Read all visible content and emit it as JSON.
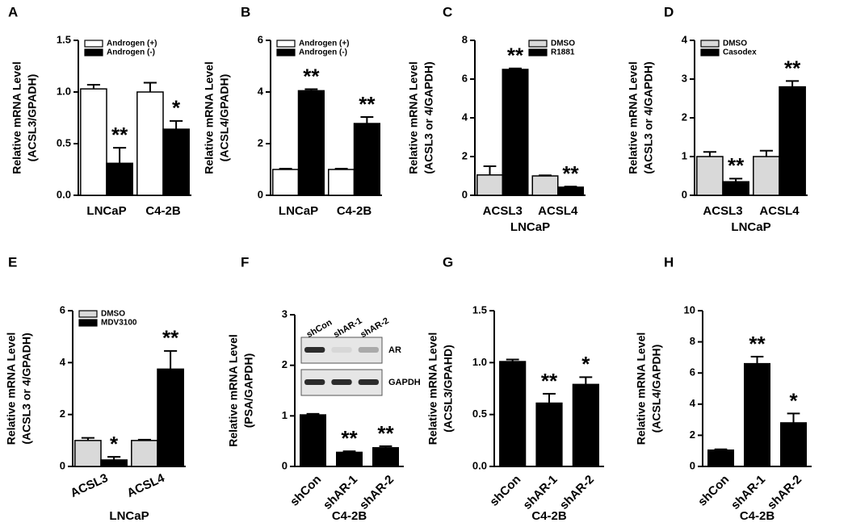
{
  "chart_data": [
    {
      "type": "bar",
      "panel": "A",
      "ylabel": [
        "Relative mRNA Level",
        "(ACSL3/GPADH)"
      ],
      "categories": [
        "LNCaP",
        "C4-2B"
      ],
      "series": [
        {
          "name": "Androgen (+)",
          "color": "#ffffff",
          "values": [
            1.03,
            1.0
          ],
          "errors": [
            0.04,
            0.09
          ],
          "sig": [
            null,
            null
          ]
        },
        {
          "name": "Androgen (-)",
          "color": "#000000",
          "values": [
            0.31,
            0.64
          ],
          "errors": [
            0.15,
            0.08
          ],
          "sig": [
            "**",
            "*"
          ]
        }
      ],
      "ylim": [
        0,
        1.5
      ],
      "yticks": [
        {
          "value": 0,
          "label": "0.0"
        },
        0.5,
        {
          "value": 1,
          "label": "1.0"
        },
        1.5
      ],
      "legend": "upper left"
    },
    {
      "type": "bar",
      "panel": "B",
      "ylabel": [
        "Relative mRNA Level",
        "(ACSL4/GPADH)"
      ],
      "categories": [
        "LNCaP",
        "C4-2B"
      ],
      "series": [
        {
          "name": "Androgen (+)",
          "color": "#ffffff",
          "values": [
            1.0,
            1.0
          ],
          "errors": [
            0.03,
            0.03
          ],
          "sig": [
            null,
            null
          ]
        },
        {
          "name": "Androgen (-)",
          "color": "#000000",
          "values": [
            4.05,
            2.78
          ],
          "errors": [
            0.06,
            0.25
          ],
          "sig": [
            "**",
            "**"
          ]
        }
      ],
      "ylim": [
        0,
        6
      ],
      "yticks": [
        0,
        2,
        4,
        6
      ],
      "legend": "upper left"
    },
    {
      "type": "bar",
      "panel": "C",
      "ylabel": [
        "Relative mRNA Level",
        "(ACSL3 or 4/GAPDH)"
      ],
      "categories": [
        "ACSL3",
        "ACSL4"
      ],
      "xlabel": "LNCaP",
      "series": [
        {
          "name": "DMSO",
          "color": "#d9d9d9",
          "values": [
            1.05,
            1.0
          ],
          "errors": [
            0.45,
            0.03
          ],
          "sig": [
            null,
            null
          ]
        },
        {
          "name": "R1881",
          "color": "#000000",
          "values": [
            6.5,
            0.42
          ],
          "errors": [
            0.05,
            0.03
          ],
          "sig": [
            "**",
            "**"
          ]
        }
      ],
      "ylim": [
        0,
        8
      ],
      "yticks": [
        0,
        2,
        4,
        6,
        8
      ],
      "legend": "upper right"
    },
    {
      "type": "bar",
      "panel": "D",
      "ylabel": [
        "Relative mRNA Level",
        "(ACSL3 or 4/GAPDH)"
      ],
      "categories": [
        "ACSL3",
        "ACSL4"
      ],
      "xlabel": "LNCaP",
      "series": [
        {
          "name": "DMSO",
          "color": "#d9d9d9",
          "values": [
            1.0,
            1.0
          ],
          "errors": [
            0.12,
            0.15
          ],
          "sig": [
            null,
            null
          ]
        },
        {
          "name": "Casodex",
          "color": "#000000",
          "values": [
            0.35,
            2.8
          ],
          "errors": [
            0.08,
            0.15
          ],
          "sig": [
            "**",
            "**"
          ]
        }
      ],
      "ylim": [
        0,
        4
      ],
      "yticks": [
        0,
        1,
        2,
        3,
        4
      ],
      "legend": "upper left"
    },
    {
      "type": "bar",
      "panel": "E",
      "ylabel": [
        "Relative mRNA Level",
        "(ACSL3 or 4/GPADH)"
      ],
      "categories": [
        "ACSL3",
        "ACSL4"
      ],
      "xlabel": "LNCaP",
      "xtick_rotation": -25,
      "series": [
        {
          "name": "DMSO",
          "color": "#d9d9d9",
          "values": [
            1.0,
            1.0
          ],
          "errors": [
            0.1,
            0.03
          ],
          "sig": [
            null,
            null
          ]
        },
        {
          "name": "MDV3100",
          "color": "#000000",
          "values": [
            0.25,
            3.75
          ],
          "errors": [
            0.12,
            0.7
          ],
          "sig": [
            "*",
            "**"
          ]
        }
      ],
      "ylim": [
        0,
        6
      ],
      "yticks": [
        0,
        2,
        4,
        6
      ],
      "legend": "upper left"
    },
    {
      "type": "bar",
      "panel": "F",
      "ylabel": [
        "Relative mRNA Level",
        "(PSA/GAPDH)"
      ],
      "categories": [
        "shCon",
        "shAR-1",
        "shAR-2"
      ],
      "xlabel": "C4-2B",
      "xtick_rotation": -45,
      "color": "#000000",
      "values": [
        1.02,
        0.28,
        0.37
      ],
      "errors": [
        0.02,
        0.02,
        0.03
      ],
      "sig": [
        null,
        "**",
        "**"
      ],
      "ylim": [
        0,
        3
      ],
      "yticks": [
        0,
        1,
        2,
        3
      ],
      "inset": {
        "lanes": [
          "shCon",
          "shAR-1",
          "shAR-2"
        ],
        "bands": [
          "AR",
          "GAPDH"
        ]
      }
    },
    {
      "type": "bar",
      "panel": "G",
      "ylabel": [
        "Relative mRNA Level",
        "(ACSL3/GPAHD)"
      ],
      "categories": [
        "shCon",
        "shAR-1",
        "shAR-2"
      ],
      "xlabel": "C4-2B",
      "xtick_rotation": -45,
      "color": "#000000",
      "values": [
        1.01,
        0.61,
        0.79
      ],
      "errors": [
        0.02,
        0.09,
        0.07
      ],
      "sig": [
        null,
        "**",
        "*"
      ],
      "ylim": [
        0,
        1.5
      ],
      "yticks": [
        {
          "value": 0,
          "label": "0.0"
        },
        0.5,
        {
          "value": 1,
          "label": "1.0"
        },
        1.5
      ]
    },
    {
      "type": "bar",
      "panel": "H",
      "ylabel": [
        "Relative mRNA Level",
        "(ACSL4/GAPDH)"
      ],
      "categories": [
        "shCon",
        "shAR-1",
        "shAR-2"
      ],
      "xlabel": "C4-2B",
      "xtick_rotation": -45,
      "color": "#000000",
      "values": [
        1.05,
        6.6,
        2.8
      ],
      "errors": [
        0.05,
        0.45,
        0.6
      ],
      "sig": [
        null,
        "**",
        "*"
      ],
      "ylim": [
        0,
        10
      ],
      "yticks": [
        0,
        2,
        4,
        6,
        8,
        10
      ]
    }
  ]
}
